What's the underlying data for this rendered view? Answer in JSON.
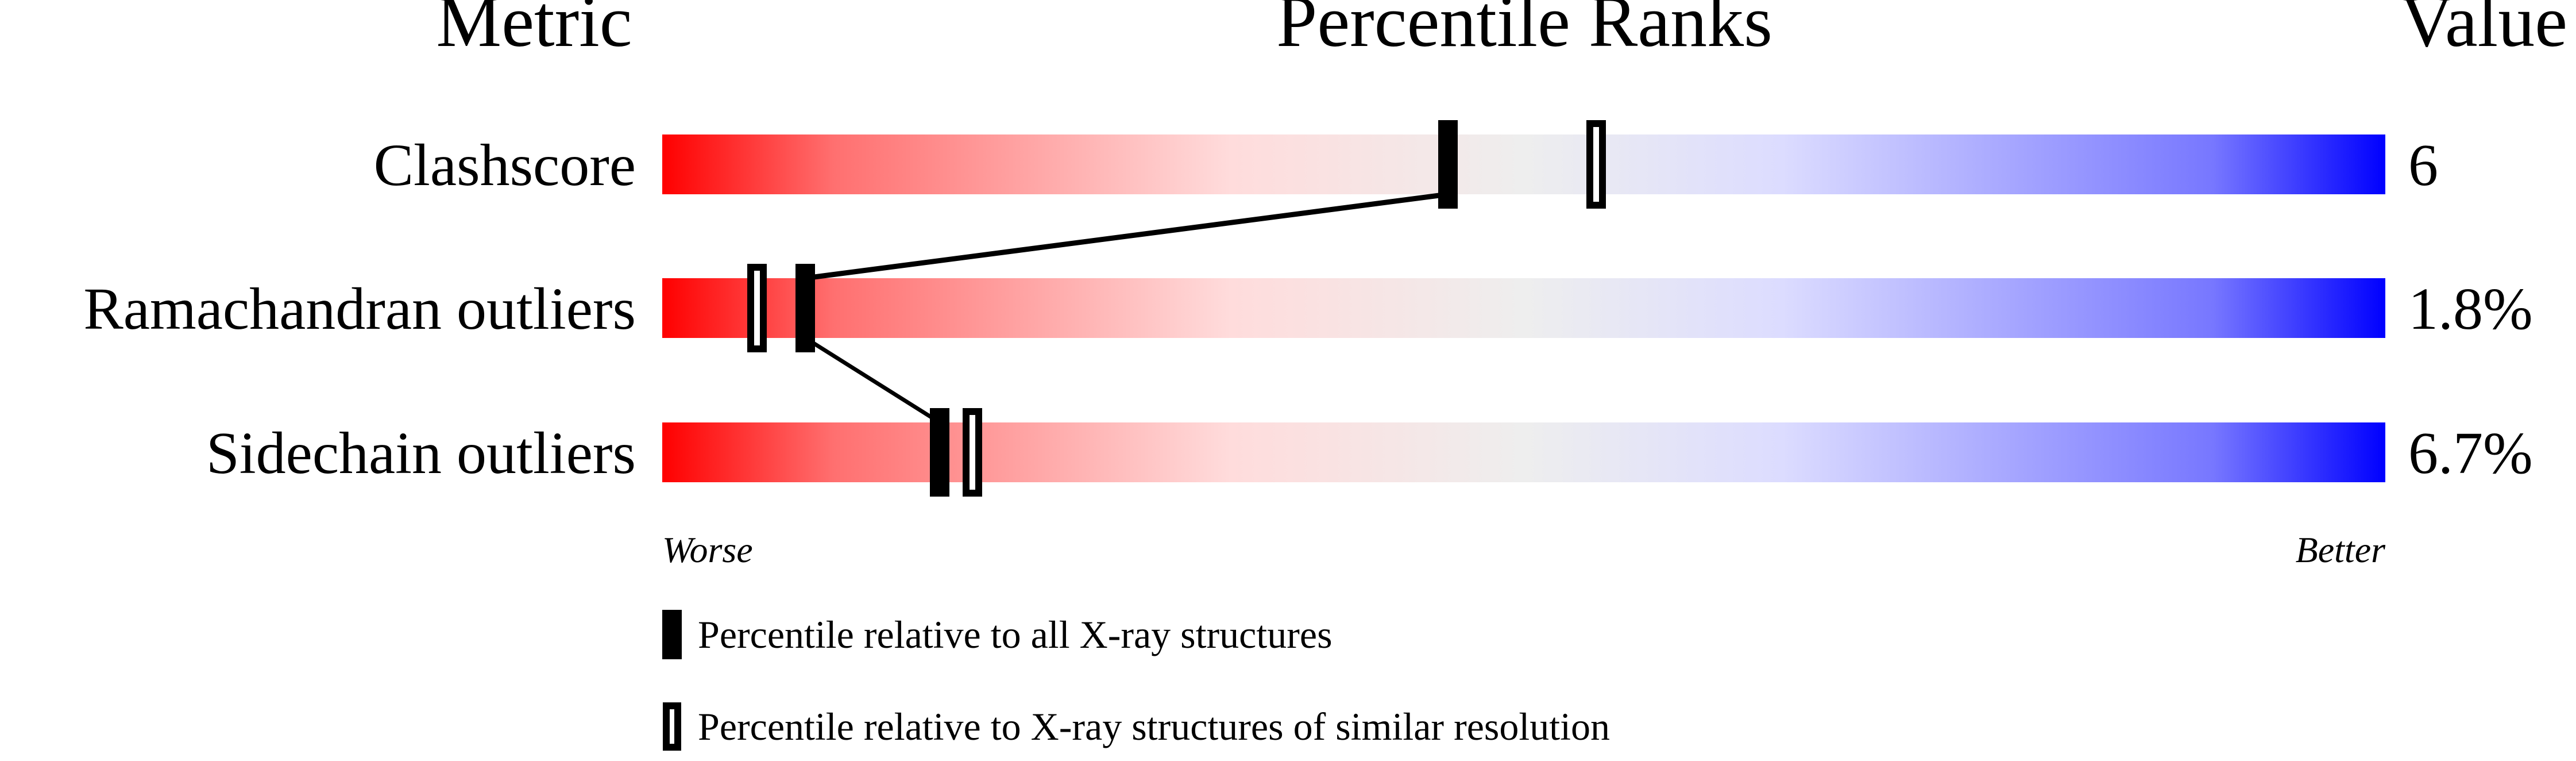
{
  "chart_data": {
    "type": "percentile-bar",
    "headers": {
      "metric": "Metric",
      "ranks": "Percentile Ranks",
      "value": "Value"
    },
    "xlim": [
      0,
      100
    ],
    "axis_labels": {
      "left": "Worse",
      "right": "Better"
    },
    "gradient_colors": [
      "#ff0000",
      "#ff7777",
      "#ffdddd",
      "#eeeeee",
      "#ddddff",
      "#7777ff",
      "#0000ff"
    ],
    "metrics": [
      {
        "name": "Clashscore",
        "value": "6",
        "percentile_all": 45.6,
        "percentile_similar": 54.2
      },
      {
        "name": "Ramachandran outliers",
        "value": "1.8%",
        "percentile_all": 8.3,
        "percentile_similar": 5.5
      },
      {
        "name": "Sidechain outliers",
        "value": "6.7%",
        "percentile_all": 16.1,
        "percentile_similar": 18.0
      }
    ],
    "legend": [
      {
        "marker": "filled",
        "label": "Percentile relative to all X-ray structures"
      },
      {
        "marker": "open",
        "label": "Percentile relative to X-ray structures of similar resolution"
      }
    ]
  }
}
